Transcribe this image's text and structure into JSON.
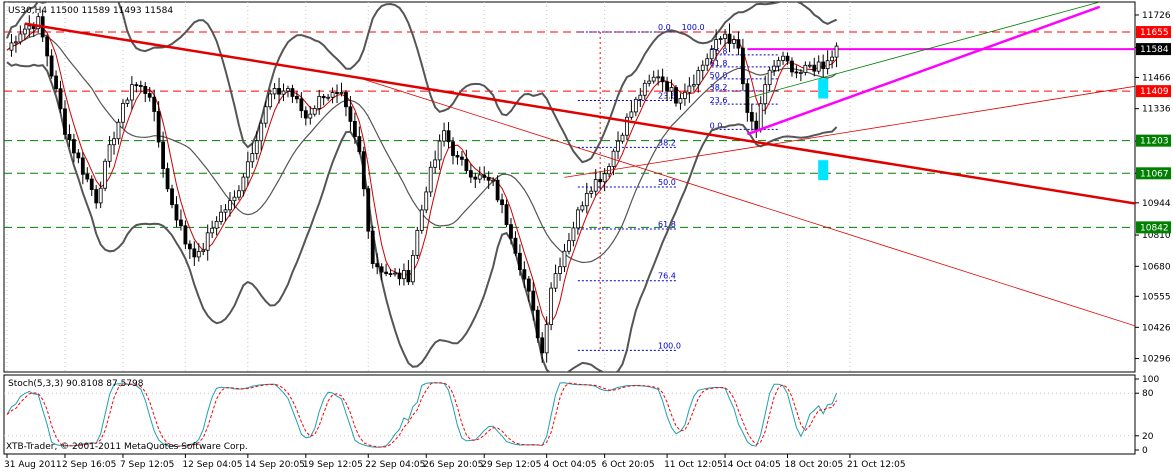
{
  "chart_data": {
    "type": "candlestick",
    "symbol_header": "US30,H4  11500 11589 11493 11584",
    "price_axis": {
      "range": [
        10240,
        11780
      ],
      "ticks": [
        11726,
        11590,
        11466,
        11336,
        11201,
        11067,
        10944,
        10810,
        10680,
        10555,
        10426,
        10296
      ]
    },
    "price_labels": [
      {
        "value": 11655,
        "text": "11655",
        "color": "#ff0000"
      },
      {
        "value": 11584,
        "text": "11584",
        "color": "#000000"
      },
      {
        "value": 11409,
        "text": "11409",
        "color": "#ff0000"
      },
      {
        "value": 11203,
        "text": "11203",
        "color": "#008000"
      },
      {
        "value": 11067,
        "text": "11067",
        "color": "#008000"
      },
      {
        "value": 10842,
        "text": "10842",
        "color": "#008000"
      }
    ],
    "horizontal_levels": [
      {
        "value": 11655,
        "color": "#ff0000",
        "style": "dashed"
      },
      {
        "value": 11409,
        "color": "#ff0000",
        "style": "dashed"
      },
      {
        "value": 11203,
        "color": "#008000",
        "style": "dashed"
      },
      {
        "value": 11067,
        "color": "#008000",
        "style": "dashed"
      },
      {
        "value": 10842,
        "color": "#008000",
        "style": "dashed"
      },
      {
        "value": 11584,
        "color": "#ff00ff",
        "style": "solid",
        "start_index": 166
      }
    ],
    "time_axis": {
      "total_bars": 186,
      "labels": [
        {
          "index": 0,
          "text": "31 Aug 2011"
        },
        {
          "index": 13,
          "text": "2 Sep 16:05"
        },
        {
          "index": 26,
          "text": "7 Sep 12:05"
        },
        {
          "index": 40,
          "text": "12 Sep 04:05"
        },
        {
          "index": 54,
          "text": "14 Sep 20:05"
        },
        {
          "index": 67,
          "text": "19 Sep 12:05"
        },
        {
          "index": 81,
          "text": "22 Sep 04:05"
        },
        {
          "index": 94,
          "text": "26 Sep 20:05"
        },
        {
          "index": 107,
          "text": "29 Sep 12:05"
        },
        {
          "index": 121,
          "text": "4 Oct 04:05"
        },
        {
          "index": 134,
          "text": "6 Oct 20:05"
        },
        {
          "index": 148,
          "text": "11 Oct 12:05"
        },
        {
          "index": 161,
          "text": "14 Oct 04:05"
        },
        {
          "index": 175,
          "text": "18 Oct 20:05"
        },
        {
          "index": 189,
          "text": "21 Oct 12:05"
        }
      ]
    },
    "price_path": [
      [
        0,
        11580
      ],
      [
        3,
        11660
      ],
      [
        7,
        11700
      ],
      [
        9,
        11560
      ],
      [
        13,
        11250
      ],
      [
        17,
        11080
      ],
      [
        20,
        10960
      ],
      [
        24,
        11230
      ],
      [
        28,
        11440
      ],
      [
        32,
        11400
      ],
      [
        36,
        11000
      ],
      [
        40,
        10780
      ],
      [
        43,
        10720
      ],
      [
        47,
        10880
      ],
      [
        51,
        10960
      ],
      [
        55,
        11170
      ],
      [
        59,
        11390
      ],
      [
        63,
        11420
      ],
      [
        67,
        11300
      ],
      [
        71,
        11400
      ],
      [
        75,
        11380
      ],
      [
        79,
        11150
      ],
      [
        82,
        10700
      ],
      [
        86,
        10640
      ],
      [
        90,
        10640
      ],
      [
        94,
        11010
      ],
      [
        98,
        11240
      ],
      [
        101,
        11120
      ],
      [
        105,
        11060
      ],
      [
        109,
        11020
      ],
      [
        113,
        10820
      ],
      [
        117,
        10560
      ],
      [
        120,
        10320
      ],
      [
        122,
        10600
      ],
      [
        126,
        10800
      ],
      [
        130,
        11000
      ],
      [
        134,
        11070
      ],
      [
        138,
        11250
      ],
      [
        142,
        11400
      ],
      [
        146,
        11480
      ],
      [
        150,
        11380
      ],
      [
        154,
        11460
      ],
      [
        158,
        11580
      ],
      [
        161,
        11650
      ],
      [
        164,
        11580
      ],
      [
        166,
        11300
      ],
      [
        168,
        11250
      ],
      [
        171,
        11500
      ],
      [
        174,
        11540
      ],
      [
        177,
        11460
      ],
      [
        180,
        11520
      ],
      [
        183,
        11500
      ],
      [
        186,
        11584
      ]
    ],
    "trendlines": [
      {
        "from": [
          4,
          11690
        ],
        "to": [
          260,
          10920
        ],
        "color": "#e00000",
        "width": 2.5
      },
      {
        "from": [
          78,
          11470
        ],
        "to": [
          260,
          10390
        ],
        "color": "#e00000",
        "width": 0.8
      },
      {
        "from": [
          125,
          11050
        ],
        "to": [
          260,
          11450
        ],
        "color": "#e00000",
        "width": 0.8
      },
      {
        "from": [
          166,
          11230
        ],
        "to": [
          245,
          11760
        ],
        "color": "#ff00ff",
        "width": 2.5
      },
      {
        "from": [
          166,
          11380
        ],
        "to": [
          245,
          11780
        ],
        "color": "#008000",
        "width": 0.8
      }
    ],
    "fibonacci": {
      "lines": [
        {
          "value": 11655,
          "label": "0.0"
        },
        {
          "value": 11370,
          "label": "23.6"
        },
        {
          "value": 11175,
          "label": "38.2"
        },
        {
          "value": 11010,
          "label": "50.0"
        },
        {
          "value": 10835,
          "label": "61.8"
        },
        {
          "value": 10620,
          "label": "76.4"
        },
        {
          "value": 10330,
          "label": "100.0"
        }
      ],
      "top_label": "100.0",
      "inner_labels": [
        {
          "value": 11560,
          "label": "76.8"
        },
        {
          "value": 11510,
          "label": "61.8"
        },
        {
          "value": 11460,
          "label": "50.0"
        },
        {
          "value": 11410,
          "label": "38.2"
        },
        {
          "value": 11355,
          "label": "23.6"
        },
        {
          "value": 11250,
          "label": "0.0"
        }
      ]
    },
    "markers": [
      {
        "index": 183,
        "value": 11420,
        "color": "#00e5ff"
      },
      {
        "index": 183,
        "value": 11080,
        "color": "#00e5ff"
      }
    ],
    "stochastic": {
      "title": "Stoch(5,3,3) 90.8108 87.5798",
      "range": [
        0,
        100
      ],
      "ticks": [
        100,
        80,
        20,
        0
      ],
      "main_color": "#20a0b0",
      "signal_color": "#ff0000"
    },
    "copyright": "XTB-Trader, © 2001-2011 MetaQuotes Software Corp."
  }
}
